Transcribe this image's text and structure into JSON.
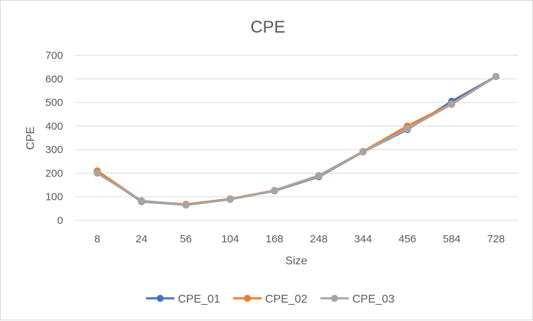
{
  "chart_data": {
    "type": "line",
    "title": "CPE",
    "xlabel": "Size",
    "ylabel": "CPE",
    "categories": [
      "8",
      "24",
      "56",
      "104",
      "168",
      "248",
      "344",
      "456",
      "584",
      "728"
    ],
    "ylim": [
      0,
      700
    ],
    "yticks": [
      0,
      100,
      200,
      300,
      400,
      500,
      600,
      700
    ],
    "grid": true,
    "legend_position": "bottom",
    "series": [
      {
        "name": "CPE_01",
        "color": "#4472C4",
        "values": [
          205,
          80,
          66,
          90,
          125,
          185,
          290,
          385,
          505,
          610
        ]
      },
      {
        "name": "CPE_02",
        "color": "#ED7D31",
        "values": [
          210,
          82,
          68,
          91,
          127,
          190,
          292,
          400,
          495,
          610
        ]
      },
      {
        "name": "CPE_03",
        "color": "#A5A5A5",
        "values": [
          200,
          83,
          65,
          89,
          126,
          188,
          290,
          388,
          492,
          610
        ]
      }
    ]
  }
}
